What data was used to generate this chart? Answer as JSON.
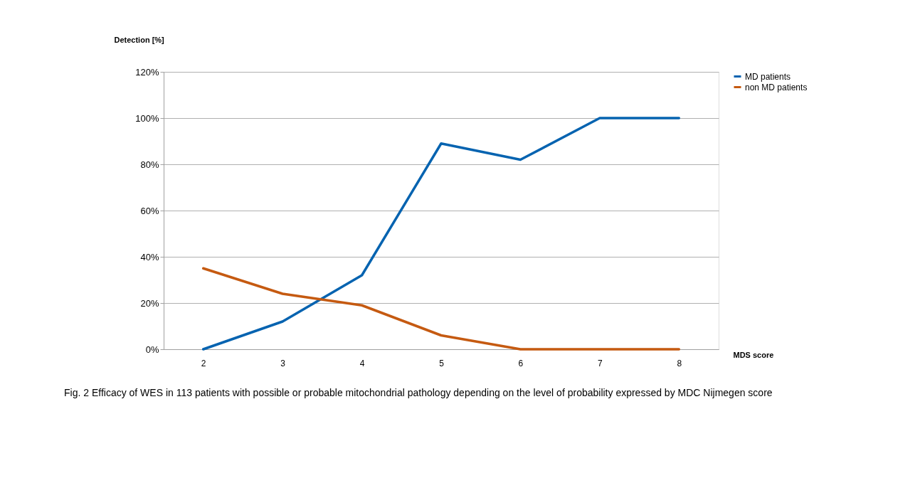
{
  "chart_data": {
    "type": "line",
    "ylabel": "Detection [%]",
    "xlabel": "MDS score",
    "categories": [
      "2",
      "3",
      "4",
      "5",
      "6",
      "7",
      "8"
    ],
    "series": [
      {
        "name": "MD patients",
        "color": "#0563b0",
        "values": [
          0,
          12,
          32,
          89,
          82,
          100,
          100
        ]
      },
      {
        "name": "non MD patients",
        "color": "#c55a11",
        "values": [
          35,
          24,
          19,
          6,
          0,
          0,
          0
        ]
      }
    ],
    "ylim": [
      0,
      120
    ],
    "yticks": [
      {
        "value": 0,
        "label": "0%"
      },
      {
        "value": 20,
        "label": "20%"
      },
      {
        "value": 40,
        "label": "40%"
      },
      {
        "value": 60,
        "label": "60%"
      },
      {
        "value": 80,
        "label": "80%"
      },
      {
        "value": 100,
        "label": "100%"
      },
      {
        "value": 120,
        "label": "120%"
      }
    ],
    "grid": "y",
    "legend": "right",
    "annotations": [
      "Fig. 2  Efficacy of WES in 113 patients with possible or probable mitochondrial pathology depending on the level of probability expressed by MDC Nijmegen score"
    ]
  }
}
